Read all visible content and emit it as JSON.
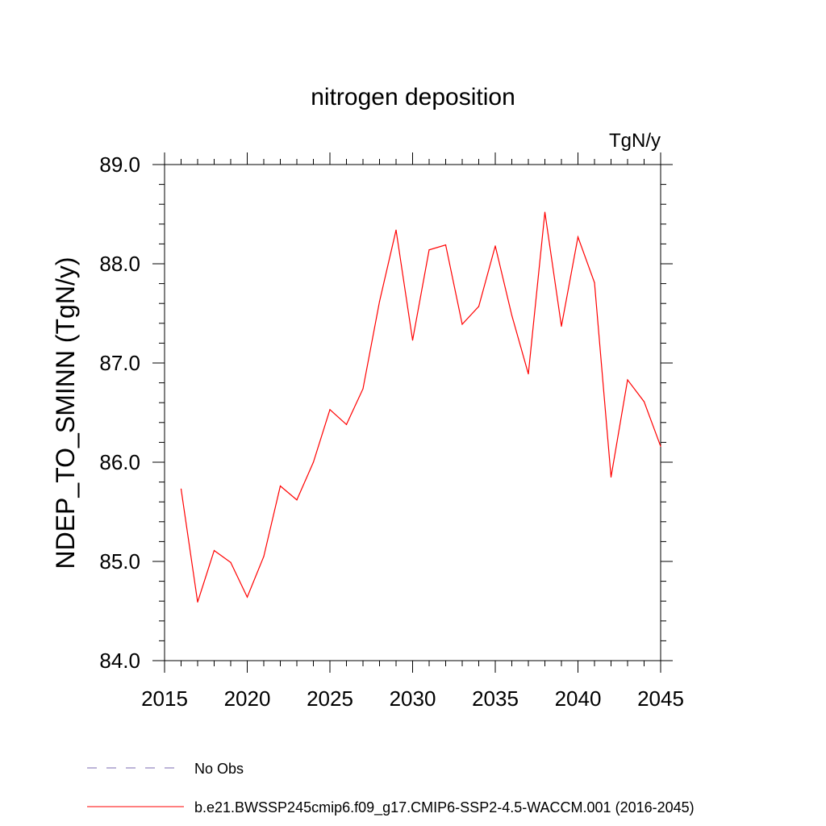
{
  "chart_data": {
    "type": "line",
    "title": "nitrogen deposition",
    "units_label": "TgN/y",
    "ylabel": "NDEP_TO_SMINN  (TgN/y)",
    "xlabel": "",
    "xlim": [
      2015,
      2045
    ],
    "ylim": [
      84.0,
      89.0
    ],
    "x_ticks": [
      "2015",
      "2020",
      "2025",
      "2030",
      "2035",
      "2040",
      "2045"
    ],
    "y_ticks": [
      "84.0",
      "85.0",
      "86.0",
      "87.0",
      "88.0",
      "89.0"
    ],
    "grid": false,
    "legend_position": "bottom",
    "x": [
      2016,
      2017,
      2018,
      2019,
      2020,
      2021,
      2022,
      2023,
      2024,
      2025,
      2026,
      2027,
      2028,
      2029,
      2030,
      2031,
      2032,
      2033,
      2034,
      2035,
      2036,
      2037,
      2038,
      2039,
      2040,
      2041,
      2042,
      2043,
      2044,
      2045
    ],
    "series": [
      {
        "name": "b.e21.BWSSP245cmip6.f09_g17.CMIP6-SSP2-4.5-WACCM.001 (2016-2045)",
        "color": "#ff0000",
        "style": "solid",
        "values": [
          85.73,
          84.59,
          85.11,
          84.99,
          84.64,
          85.05,
          85.76,
          85.62,
          86.0,
          86.53,
          86.38,
          86.74,
          87.62,
          88.34,
          87.23,
          88.14,
          88.19,
          87.39,
          87.57,
          88.18,
          87.48,
          86.89,
          88.52,
          87.37,
          88.27,
          87.81,
          85.85,
          86.83,
          86.61,
          86.16
        ]
      }
    ],
    "legend": [
      {
        "label": "No Obs",
        "color": "#7b68b0",
        "style": "dashed"
      },
      {
        "label": "b.e21.BWSSP245cmip6.f09_g17.CMIP6-SSP2-4.5-WACCM.001 (2016-2045)",
        "color": "#ff0000",
        "style": "solid"
      }
    ]
  }
}
